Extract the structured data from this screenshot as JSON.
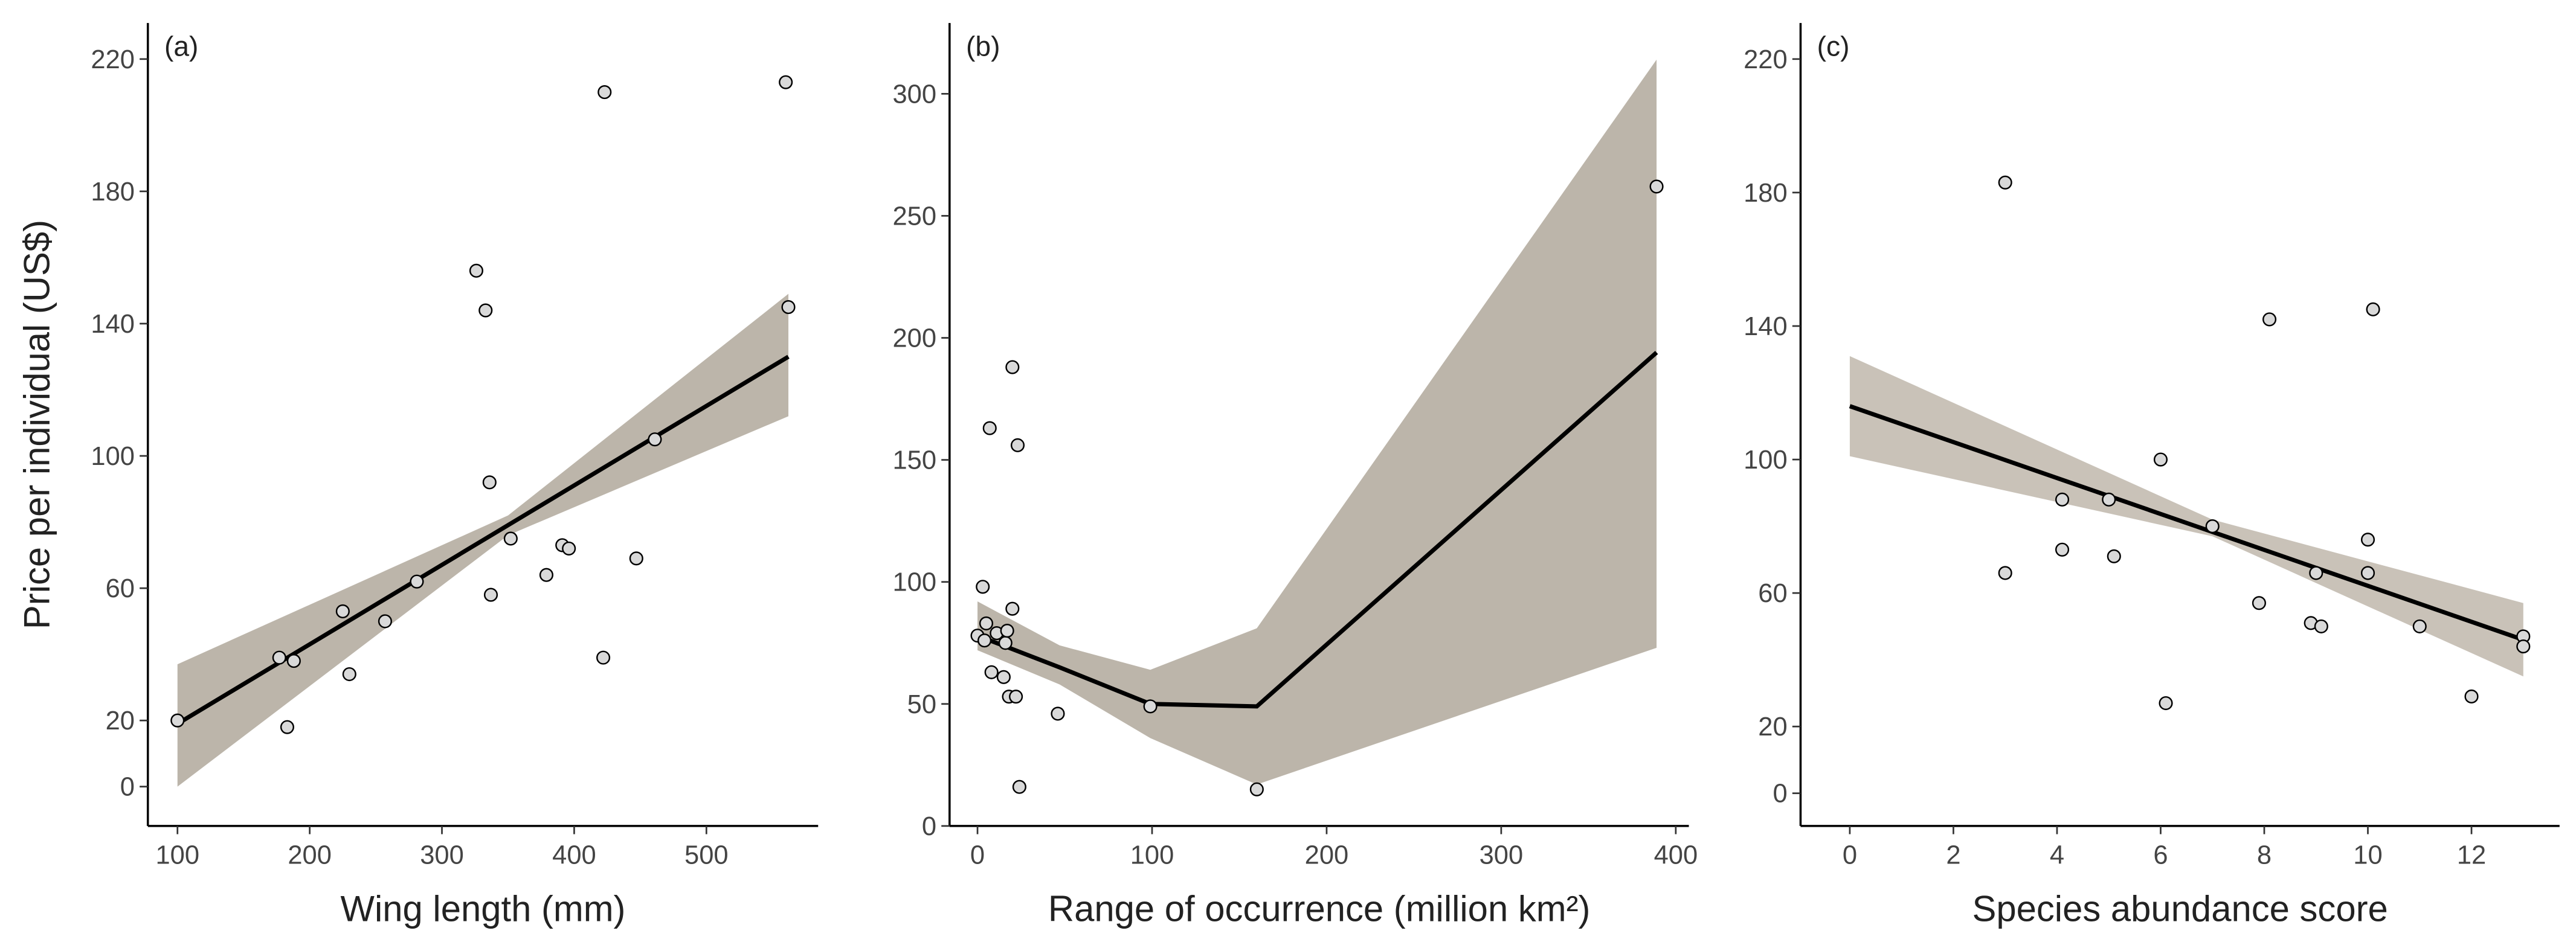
{
  "chart_data": [
    {
      "type": "scatter",
      "panel_label": "(a)",
      "x_label": "Wing length (mm)",
      "y_label": "Price per individual (US$)",
      "xlim": [
        77.6,
        584.5
      ],
      "ylim": [
        -11.9,
        230.9
      ],
      "xticks": [
        100,
        200,
        300,
        400,
        500
      ],
      "yticks": [
        0,
        20,
        60,
        100,
        140,
        180,
        220
      ],
      "points": {
        "color": "#d9d9d9",
        "x": [
          100,
          177,
          183,
          188,
          225,
          230,
          257,
          281,
          326,
          333,
          336,
          337,
          352,
          379,
          391,
          396,
          423,
          422,
          447,
          461,
          560,
          562
        ],
        "y": [
          20,
          39,
          18,
          38,
          53,
          34,
          50,
          62,
          156,
          144,
          92,
          58,
          75,
          64,
          73,
          72,
          210,
          39,
          69,
          105,
          213,
          145
        ]
      },
      "fit": {
        "color": "#000000",
        "x": [
          100,
          562
        ],
        "y": [
          19,
          130
        ]
      },
      "band": {
        "color": "#bcb5aa",
        "x": [
          100,
          350,
          562
        ],
        "lower": [
          0,
          76,
          112
        ],
        "upper": [
          37,
          82,
          149
        ]
      }
    },
    {
      "type": "scatter",
      "panel_label": "(b)",
      "x_label": "Range of occurrence (million km²)",
      "xlim": [
        -16,
        407.5
      ],
      "ylim": [
        0,
        329
      ],
      "xticks": [
        0,
        100,
        200,
        300,
        400
      ],
      "yticks": [
        0,
        50,
        100,
        150,
        200,
        250,
        300
      ],
      "points": {
        "color": "#d9d9d9",
        "x": [
          0,
          3,
          5,
          4,
          7,
          8,
          11,
          15,
          16,
          17,
          18,
          20,
          20,
          22,
          23,
          24,
          46,
          99,
          160,
          389
        ],
        "y": [
          78,
          98,
          83,
          76,
          163,
          63,
          79,
          61,
          75,
          80,
          53,
          188,
          89,
          53,
          156,
          16,
          46,
          49,
          15,
          262
        ]
      },
      "fit": {
        "color": "#000000",
        "x": [
          0,
          47,
          99,
          160,
          389
        ],
        "y": [
          78,
          65,
          50,
          49,
          194
        ]
      },
      "band": {
        "color": "#bcb5aa",
        "x": [
          0,
          47,
          99,
          160,
          389
        ],
        "lower": [
          72,
          58,
          36,
          17,
          73
        ],
        "upper": [
          92,
          74,
          64,
          81,
          314
        ]
      }
    },
    {
      "type": "scatter",
      "panel_label": "(c)",
      "x_label": "Species abundance score",
      "xlim": [
        -0.95,
        13.7
      ],
      "ylim": [
        -9.8,
        230.8
      ],
      "xticks": [
        0,
        2,
        4,
        6,
        8,
        10,
        12
      ],
      "yticks": [
        0,
        20,
        60,
        100,
        140,
        180,
        220
      ],
      "points": {
        "color": "#d9d9d9",
        "x": [
          3.0,
          3.0,
          4.1,
          4.1,
          5.0,
          5.1,
          6.0,
          6.1,
          7.0,
          7.9,
          8.1,
          9.0,
          8.9,
          9.1,
          10.0,
          10.0,
          10.1,
          11.0,
          12.0,
          13.0,
          13.0
        ],
        "y": [
          183,
          66,
          88,
          73,
          88,
          71,
          100,
          27,
          80,
          57,
          142,
          66,
          51,
          50,
          76,
          66,
          145,
          50,
          29,
          47,
          44
        ]
      },
      "fit": {
        "color": "#000000",
        "x": [
          0,
          13
        ],
        "y": [
          116,
          46
        ]
      },
      "band": {
        "color": "#c9c2b8",
        "x": [
          0,
          7,
          13
        ],
        "lower": [
          101,
          77,
          35
        ],
        "upper": [
          131,
          82,
          57
        ]
      }
    }
  ]
}
